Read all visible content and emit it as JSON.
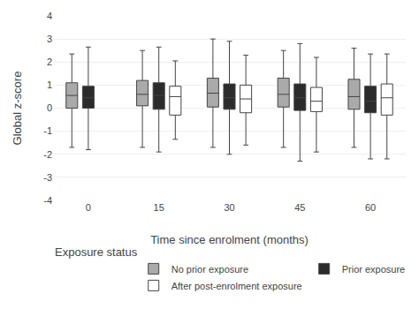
{
  "chart_data": {
    "type": "box",
    "xlabel": "Time since enrolment (months)",
    "ylabel": "Global z-score",
    "categories": [
      "0",
      "15",
      "30",
      "45",
      "60"
    ],
    "series": [
      {
        "name": "No prior exposure",
        "color": "#aaaaaa",
        "values": [
          {
            "whislo": -1.7,
            "q1": 0.0,
            "med": 0.55,
            "q3": 1.1,
            "whishi": 2.35
          },
          {
            "whislo": -1.7,
            "q1": 0.1,
            "med": 0.6,
            "q3": 1.2,
            "whishi": 2.5
          },
          {
            "whislo": -1.7,
            "q1": 0.05,
            "med": 0.65,
            "q3": 1.3,
            "whishi": 3.0
          },
          {
            "whislo": -1.7,
            "q1": 0.05,
            "med": 0.6,
            "q3": 1.3,
            "whishi": 2.5
          },
          {
            "whislo": -1.7,
            "q1": -0.05,
            "med": 0.5,
            "q3": 1.25,
            "whishi": 2.6
          }
        ]
      },
      {
        "name": "Prior exposure",
        "color": "#2b2b2b",
        "values": [
          {
            "whislo": -1.8,
            "q1": 0.0,
            "med": 0.45,
            "q3": 0.95,
            "whishi": 2.65
          },
          {
            "whislo": -1.9,
            "q1": -0.05,
            "med": 0.55,
            "q3": 1.1,
            "whishi": 2.65
          },
          {
            "whislo": -2.0,
            "q1": -0.05,
            "med": 0.45,
            "q3": 1.05,
            "whishi": 2.9
          },
          {
            "whislo": -2.3,
            "q1": -0.1,
            "med": 0.45,
            "q3": 1.05,
            "whishi": 2.8
          },
          {
            "whislo": -2.2,
            "q1": -0.2,
            "med": 0.3,
            "q3": 0.95,
            "whishi": 2.35
          }
        ]
      },
      {
        "name": "After post-enrolment exposure",
        "color": "#ffffff",
        "values": [
          null,
          {
            "whislo": -1.35,
            "q1": -0.3,
            "med": 0.5,
            "q3": 0.95,
            "whishi": 2.05
          },
          {
            "whislo": -1.6,
            "q1": -0.2,
            "med": 0.4,
            "q3": 1.0,
            "whishi": 2.3
          },
          {
            "whislo": -1.9,
            "q1": -0.15,
            "med": 0.3,
            "q3": 0.9,
            "whishi": 2.2
          },
          {
            "whislo": -2.2,
            "q1": -0.3,
            "med": 0.45,
            "q3": 1.05,
            "whishi": 2.35
          }
        ]
      }
    ],
    "ylim": [
      -4,
      4
    ],
    "yticks": [
      -4,
      -3,
      -2,
      -1,
      0,
      1,
      2,
      3,
      4
    ],
    "grid": true,
    "legend_title": "Exposure status",
    "legend": "bottom"
  }
}
